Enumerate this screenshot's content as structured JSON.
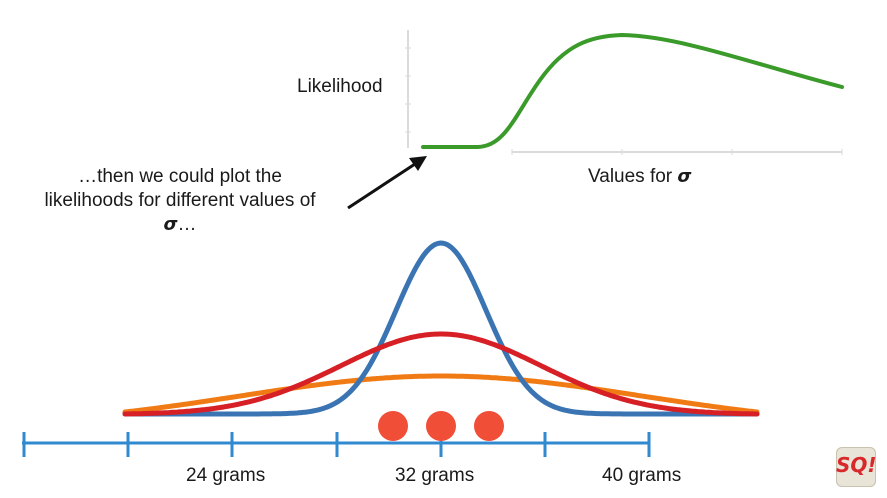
{
  "likelihood_plot": {
    "ylabel": "Likelihood",
    "xlabel": "Values for",
    "xlabel_symbol": "σ",
    "curve_color": "#3a9a2a"
  },
  "annotation": {
    "line1": "…then we could plot the",
    "line2": "likelihoods for different values of",
    "symbol": "σ",
    "ellipsis": "…"
  },
  "number_line": {
    "tick_labels": [
      "24 grams",
      "32 grams",
      "40 grams"
    ],
    "color": "#2f8ad0"
  },
  "distributions": [
    {
      "color": "#3b74b3",
      "description_level": "narrow"
    },
    {
      "color": "#d71f26",
      "description_level": "medium"
    },
    {
      "color": "#f07b15",
      "description_level": "wide"
    }
  ],
  "observations": {
    "count": 3,
    "color": "#f04e37"
  },
  "logo": {
    "text": "SQ!"
  }
}
